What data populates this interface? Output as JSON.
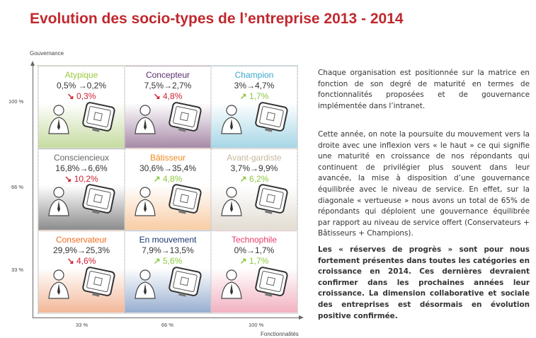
{
  "title": "Evolution des socio-types de l’entreprise 2013 - 2014",
  "axes": {
    "y_label": "Gouvernance",
    "x_label": "Fonctionnalités",
    "y_ticks": [
      "100 %",
      "66 %",
      "33 %"
    ],
    "x_ticks": [
      "33 %",
      "66 %",
      "100 %"
    ]
  },
  "colors": {
    "down": "#cc2233",
    "up": "#8cc83c"
  },
  "cells": [
    {
      "name": "Atypique",
      "values": "0,5% →0,2%",
      "trend": "down",
      "delta": "0,3%",
      "name_color": "#9cc83c",
      "bg": "#c6dba0"
    },
    {
      "name": "Concepteur",
      "values": "7,5%→2,7%",
      "trend": "down",
      "delta": "4,8%",
      "name_color": "#5a2f6e",
      "bg": "#a88aa8"
    },
    {
      "name": "Champion",
      "values": "3%→4,7%",
      "trend": "up",
      "delta": "1,7%",
      "name_color": "#3aa8cc",
      "bg": "#a6d6e6"
    },
    {
      "name": "Consciencieux",
      "values": "16,8%→6,6%",
      "trend": "down",
      "delta": "10,2%",
      "name_color": "#666666",
      "bg": "#8c8c8c"
    },
    {
      "name": "Bâtisseur",
      "values": "30,6%→35,4%",
      "trend": "up",
      "delta": "4,8%",
      "name_color": "#f08a20",
      "bg": "#f8cca4"
    },
    {
      "name": "Avant-gardiste",
      "values": "3,7%→9,9%",
      "trend": "up",
      "delta": "6,2%",
      "name_color": "#c8b89c",
      "bg": "#e2dcd2"
    },
    {
      "name": "Conservateur",
      "values": "29,9%→25,3%",
      "trend": "down",
      "delta": "4,6%",
      "name_color": "#f06a1a",
      "bg": "#f2b898"
    },
    {
      "name": "En mouvement",
      "values": "7,9%→13,5%",
      "trend": "up",
      "delta": "5,6%",
      "name_color": "#1a3370",
      "bg": "#98aed0"
    },
    {
      "name": "Technophile",
      "values": "0%→1,7%",
      "trend": "up",
      "delta": "1,7%",
      "name_color": "#e83a6a",
      "bg": "#f2b2c2"
    }
  ],
  "paragraphs": [
    "Chaque organisation est positionnée sur la matrice en fonction de son degré de maturité en termes de fonctionnalités proposées et de gouvernance implémentée dans l’intranet.",
    "Cette année, on note la poursuite du mouvement vers la droite avec une inflexion vers « le haut » ce qui signifie une maturité en croissance de nos répondants qui continuent de privilégier plus souvent dans leur avancée, la mise à disposition d’une gouvernance équilibrée avec le niveau de service. En effet, sur la diagonale « vertueuse » nous avons un total de 65% de répondants qui déploient une gouvernance équilibrée par rapport au niveau de service offert (Conservateurs + Bâtisseurs + Champions).",
    "Les « réserves de progrès » sont pour nous fortement présentes dans toutes les catégories en croissance en 2014. Ces dernières devraient confirmer dans les prochaines années leur croissance. La dimension collaborative et sociale des entreprises est désormais en évolution positive confirmée."
  ]
}
